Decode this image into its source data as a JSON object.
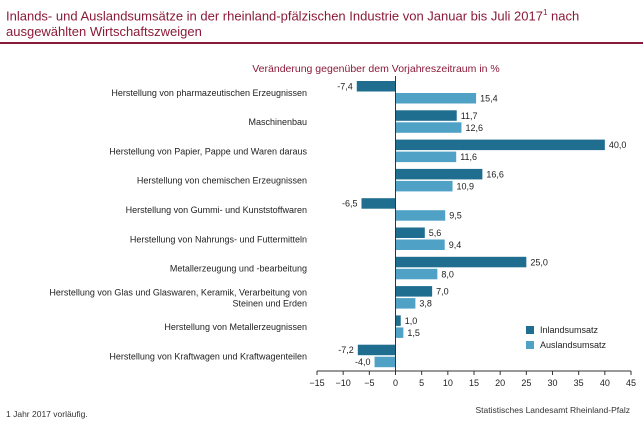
{
  "header": {
    "title": "Inlands- und Auslandsumsätze in der rheinland-pfälzischen Industrie von Januar bis Juli 2017",
    "title_footnote_mark": "1",
    "title_suffix": " nach ausgewählten Wirtschaftszweigen"
  },
  "footer": {
    "footnote": "1 Jahr 2017 vorläufig.",
    "source": "Statistisches Landesamt Rheinland-Pfalz"
  },
  "colors": {
    "title": "#8b1a3a",
    "inland": "#1f6e8f",
    "ausland": "#4fa2c6"
  },
  "chart_data": {
    "type": "bar",
    "orientation": "horizontal",
    "title": "Veränderung gegenüber dem Vorjahreszeitraum in %",
    "categories": [
      [
        "Herstellung von pharmazeutischen Erzeugnissen"
      ],
      [
        "Maschinenbau"
      ],
      [
        "Herstellung von Papier, Pappe und Waren daraus"
      ],
      [
        "Herstellung von chemischen Erzeugnissen"
      ],
      [
        "Herstellung von Gummi- und Kunststoffwaren"
      ],
      [
        "Herstellung von Nahrungs- und Futtermitteln"
      ],
      [
        "Metallerzeugung und -bearbeitung"
      ],
      [
        "Herstellung von Glas und Glaswaren, Keramik, Verarbeitung von",
        "Steinen und Erden"
      ],
      [
        "Herstellung von Metallerzeugnissen"
      ],
      [
        "Herstellung von Kraftwagen und Kraftwagenteilen"
      ]
    ],
    "series": [
      {
        "name": "Inlandsumsatz",
        "values": [
          -7.4,
          11.7,
          40.0,
          16.6,
          -6.5,
          5.6,
          25.0,
          7.0,
          1.0,
          -7.2
        ],
        "labels": [
          "-7,4",
          "11,7",
          "40,0",
          "16,6",
          "-6,5",
          "5,6",
          "25,0",
          "7,0",
          "1,0",
          "-7,2"
        ]
      },
      {
        "name": "Auslandsumsatz",
        "values": [
          15.4,
          12.6,
          11.6,
          10.9,
          9.5,
          9.4,
          8.0,
          3.8,
          1.5,
          -4.0
        ],
        "labels": [
          "15,4",
          "12,6",
          "11,6",
          "10,9",
          "9,5",
          "9,4",
          "8,0",
          "3,8",
          "1,5",
          "-4,0"
        ]
      }
    ],
    "xlim": [
      -15,
      45
    ],
    "xticks": [
      -15,
      -10,
      -5,
      0,
      5,
      10,
      15,
      20,
      25,
      30,
      35,
      40,
      45
    ],
    "xtick_labels": [
      "−15",
      "−10",
      "−5",
      "0",
      "5",
      "10",
      "15",
      "20",
      "25",
      "30",
      "35",
      "40",
      "45"
    ],
    "grid": false,
    "legend_position": "bottom-right"
  }
}
